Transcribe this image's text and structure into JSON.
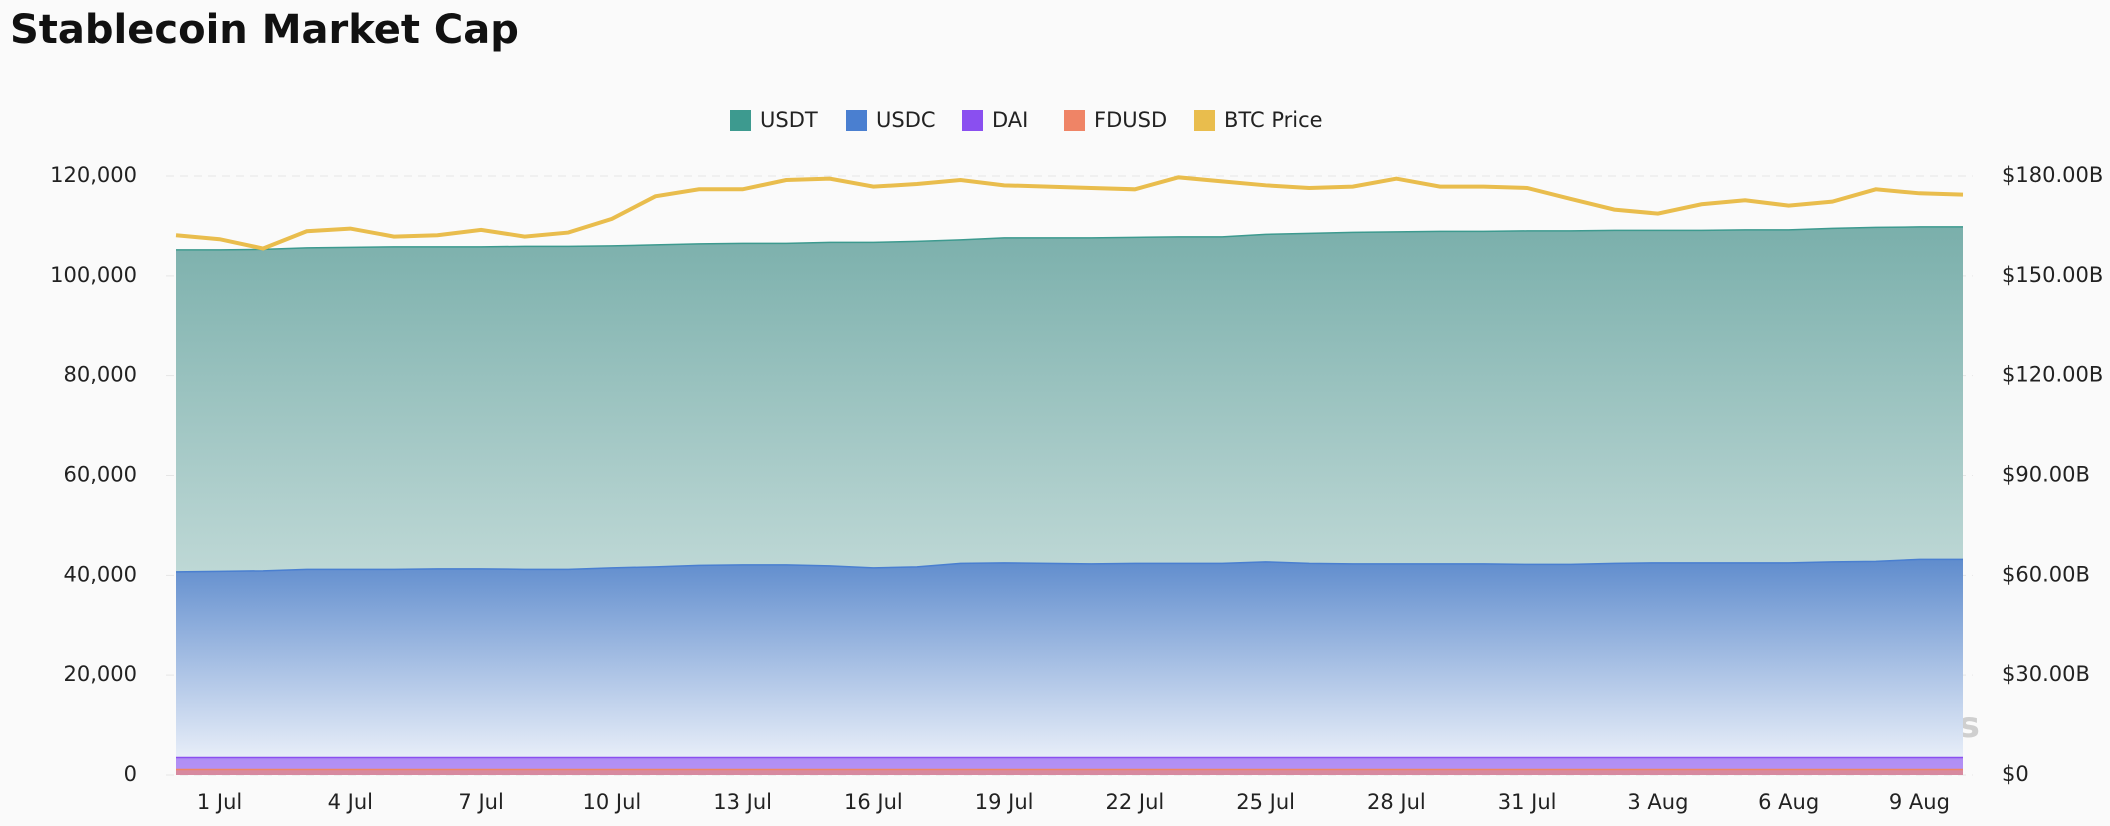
{
  "chart_data": {
    "type": "area",
    "title": "Stablecoin Market Cap",
    "watermark": "coinglass",
    "categories": [
      null,
      "1 Jul",
      null,
      null,
      "4 Jul",
      null,
      null,
      "7 Jul",
      null,
      null,
      "10 Jul",
      null,
      null,
      "13 Jul",
      null,
      null,
      "16 Jul",
      null,
      null,
      "19 Jul",
      null,
      null,
      "22 Jul",
      null,
      null,
      "25 Jul",
      null,
      null,
      "28 Jul",
      null,
      null,
      "31 Jul",
      null,
      null,
      "3 Aug",
      null,
      null,
      "6 Aug",
      null,
      null,
      "9 Aug",
      null
    ],
    "series": [
      {
        "name": "USDT",
        "color": "#3d9a8f",
        "values": [
          105200,
          105200,
          105300,
          105600,
          105700,
          105800,
          105800,
          105800,
          105900,
          105900,
          106000,
          106200,
          106400,
          106500,
          106500,
          106700,
          106700,
          106900,
          107200,
          107600,
          107600,
          107600,
          107700,
          107800,
          107800,
          108300,
          108500,
          108700,
          108800,
          108900,
          108900,
          109000,
          109000,
          109100,
          109100,
          109100,
          109200,
          109200,
          109500,
          109700,
          109800,
          109800
        ]
      },
      {
        "name": "USDC",
        "color": "#4a7fd0",
        "values": [
          40700,
          40800,
          40900,
          41200,
          41200,
          41200,
          41300,
          41300,
          41200,
          41200,
          41500,
          41700,
          42000,
          42100,
          42100,
          41900,
          41500,
          41700,
          42400,
          42500,
          42400,
          42300,
          42400,
          42400,
          42400,
          42700,
          42400,
          42300,
          42300,
          42300,
          42300,
          42200,
          42200,
          42400,
          42500,
          42500,
          42500,
          42500,
          42700,
          42800,
          43200,
          43200
        ]
      },
      {
        "name": "DAI",
        "color": "#8a4ff0",
        "values": [
          3500,
          3500,
          3500,
          3500,
          3500,
          3500,
          3500,
          3500,
          3500,
          3500,
          3500,
          3500,
          3500,
          3500,
          3500,
          3500,
          3500,
          3500,
          3500,
          3500,
          3500,
          3500,
          3500,
          3500,
          3500,
          3500,
          3500,
          3500,
          3500,
          3500,
          3500,
          3500,
          3500,
          3500,
          3500,
          3500,
          3500,
          3500,
          3500,
          3500,
          3500,
          3500
        ]
      },
      {
        "name": "FDUSD",
        "color": "#ef8466",
        "values": [
          1100,
          1100,
          1100,
          1100,
          1100,
          1100,
          1100,
          1100,
          1100,
          1100,
          1100,
          1100,
          1100,
          1100,
          1100,
          1100,
          1100,
          1100,
          1100,
          1100,
          1100,
          1100,
          1100,
          1100,
          1100,
          1100,
          1100,
          1100,
          1100,
          1100,
          1100,
          1100,
          1100,
          1100,
          1100,
          1100,
          1100,
          1100,
          1100,
          1100,
          1100,
          1100
        ]
      },
      {
        "name": "BTC Price",
        "color": "#e9bd4d",
        "axis": "y2",
        "values": [
          162.2,
          161.0,
          158.2,
          163.4,
          164.2,
          161.8,
          162.2,
          163.8,
          161.8,
          163.0,
          167.1,
          173.9,
          176.0,
          176.0,
          178.8,
          179.2,
          176.8,
          177.6,
          178.8,
          177.2,
          176.8,
          176.4,
          176.0,
          179.6,
          178.4,
          177.2,
          176.4,
          176.8,
          179.2,
          176.8,
          176.8,
          176.4,
          173.1,
          169.9,
          168.7,
          171.5,
          172.7,
          171.1,
          172.3,
          176.0,
          174.8,
          174.4
        ]
      }
    ],
    "ylim": [
      0,
      120000
    ],
    "yticks": [
      0,
      {
        "value": 20000,
        "label": "20,000"
      },
      {
        "value": 40000,
        "label": "40,000"
      },
      {
        "value": 60000,
        "label": "60,000"
      },
      {
        "value": 80000,
        "label": "80,000"
      },
      {
        "value": 100000,
        "label": "100,000"
      },
      {
        "value": 120000,
        "label": "120,000"
      }
    ],
    "y2lim": [
      0,
      180
    ],
    "y2ticks": [
      {
        "value": 0,
        "label": "$0"
      },
      {
        "value": 30,
        "label": "$30.00B"
      },
      {
        "value": 60,
        "label": "$60.00B"
      },
      {
        "value": 90,
        "label": "$90.00B"
      },
      {
        "value": 120,
        "label": "$120.00B"
      },
      {
        "value": 150,
        "label": "$150.00B"
      },
      {
        "value": 180,
        "label": "$180.00B"
      }
    ],
    "grid": true,
    "legend": "top"
  }
}
